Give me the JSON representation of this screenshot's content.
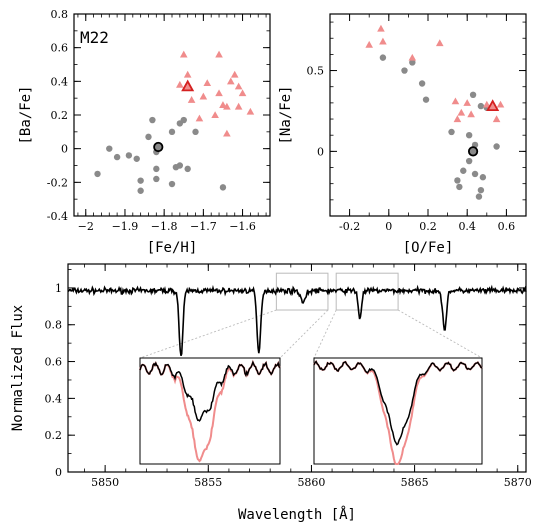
{
  "colors": {
    "pink": "#f08c8c",
    "red_edge": "#d42020",
    "gray": "#8a8a8a",
    "black": "#000000",
    "zoom_box": "#bbbbbb"
  },
  "chart_data": [
    {
      "type": "scatter",
      "label": "M22",
      "xlabel": "[Fe/H]",
      "ylabel": "[Ba/Fe]",
      "xlim": [
        -2.03,
        -1.53
      ],
      "ylim": [
        -0.4,
        0.8
      ],
      "xticks": [
        -2,
        -1.9,
        -1.8,
        -1.7,
        -1.6
      ],
      "yticks": [
        -0.4,
        -0.2,
        0,
        0.2,
        0.4,
        0.6,
        0.8
      ],
      "ytick_labels": [
        "-0.4",
        "-0.2",
        "0",
        "0.2",
        "0.4",
        "0.6",
        "0.8"
      ],
      "series": [
        {
          "marker": "circle",
          "color": "#8a8a8a",
          "points": [
            [
              -1.97,
              -0.15
            ],
            [
              -1.94,
              0.0
            ],
            [
              -1.92,
              -0.05
            ],
            [
              -1.89,
              -0.04
            ],
            [
              -1.87,
              -0.06
            ],
            [
              -1.86,
              -0.19
            ],
            [
              -1.86,
              -0.25
            ],
            [
              -1.84,
              0.07
            ],
            [
              -1.83,
              0.17
            ],
            [
              -1.82,
              -0.02
            ],
            [
              -1.82,
              -0.12
            ],
            [
              -1.82,
              -0.18
            ],
            [
              -1.78,
              0.1
            ],
            [
              -1.78,
              -0.21
            ],
            [
              -1.77,
              -0.11
            ],
            [
              -1.76,
              0.15
            ],
            [
              -1.76,
              -0.1
            ],
            [
              -1.75,
              0.17
            ],
            [
              -1.74,
              -0.12
            ],
            [
              -1.72,
              0.1
            ],
            [
              -1.65,
              -0.23
            ]
          ]
        },
        {
          "marker": "triangle",
          "color": "#f08c8c",
          "points": [
            [
              -1.76,
              0.38
            ],
            [
              -1.75,
              0.56
            ],
            [
              -1.74,
              0.44
            ],
            [
              -1.73,
              0.29
            ],
            [
              -1.71,
              0.18
            ],
            [
              -1.7,
              0.31
            ],
            [
              -1.69,
              0.39
            ],
            [
              -1.67,
              0.2
            ],
            [
              -1.66,
              0.56
            ],
            [
              -1.66,
              0.33
            ],
            [
              -1.65,
              0.26
            ],
            [
              -1.64,
              0.25
            ],
            [
              -1.64,
              0.09
            ],
            [
              -1.63,
              0.4
            ],
            [
              -1.62,
              0.44
            ],
            [
              -1.61,
              0.37
            ],
            [
              -1.61,
              0.25
            ],
            [
              -1.6,
              0.33
            ],
            [
              -1.58,
              0.22
            ]
          ]
        },
        {
          "marker": "circle-highlight",
          "color": "#8a8a8a",
          "points": [
            [
              -1.815,
              0.01
            ]
          ]
        },
        {
          "marker": "triangle-highlight",
          "color": "#f08c8c",
          "points": [
            [
              -1.74,
              0.37
            ]
          ]
        }
      ]
    },
    {
      "type": "scatter",
      "xlabel": "[O/Fe]",
      "ylabel": "[Na/Fe]",
      "xlim": [
        -0.3,
        0.7
      ],
      "ylim": [
        -0.4,
        0.85
      ],
      "xticks": [
        -0.2,
        0,
        0.2,
        0.4,
        0.6
      ],
      "xtick_labels": [
        "-0.2",
        "0",
        "0.2",
        "0.4",
        "0.6"
      ],
      "yticks": [
        0,
        0.5
      ],
      "ytick_labels": [
        "0",
        "0.5"
      ],
      "series": [
        {
          "marker": "circle",
          "color": "#8a8a8a",
          "points": [
            [
              -0.03,
              0.58
            ],
            [
              0.08,
              0.5
            ],
            [
              0.12,
              0.55
            ],
            [
              0.17,
              0.42
            ],
            [
              0.19,
              0.32
            ],
            [
              0.32,
              0.12
            ],
            [
              0.35,
              -0.18
            ],
            [
              0.36,
              -0.22
            ],
            [
              0.38,
              -0.12
            ],
            [
              0.41,
              0.1
            ],
            [
              0.41,
              -0.06
            ],
            [
              0.43,
              0.35
            ],
            [
              0.44,
              0.04
            ],
            [
              0.44,
              -0.14
            ],
            [
              0.46,
              -0.28
            ],
            [
              0.47,
              -0.24
            ],
            [
              0.47,
              0.28
            ],
            [
              0.48,
              -0.16
            ],
            [
              0.5,
              0.27
            ],
            [
              0.55,
              0.03
            ]
          ]
        },
        {
          "marker": "triangle",
          "color": "#f08c8c",
          "points": [
            [
              -0.1,
              0.66
            ],
            [
              -0.04,
              0.76
            ],
            [
              -0.03,
              0.68
            ],
            [
              0.12,
              0.58
            ],
            [
              0.26,
              0.67
            ],
            [
              0.34,
              0.31
            ],
            [
              0.35,
              0.2
            ],
            [
              0.37,
              0.24
            ],
            [
              0.4,
              0.3
            ],
            [
              0.42,
              0.23
            ],
            [
              0.5,
              0.29
            ],
            [
              0.55,
              0.2
            ],
            [
              0.57,
              0.29
            ]
          ]
        },
        {
          "marker": "circle-highlight",
          "color": "#8a8a8a",
          "points": [
            [
              0.43,
              0.0
            ]
          ]
        },
        {
          "marker": "triangle-highlight",
          "color": "#f08c8c",
          "points": [
            [
              0.53,
              0.28
            ]
          ]
        }
      ]
    },
    {
      "type": "line",
      "xlabel": "Wavelength [Å]",
      "ylabel": "Normalized Flux",
      "xlim": [
        5848.2,
        5870.4
      ],
      "ylim": [
        0,
        1.13
      ],
      "xticks": [
        5850,
        5855,
        5860,
        5865,
        5870
      ],
      "yticks": [
        0,
        0.2,
        0.4,
        0.6,
        0.8,
        1
      ],
      "ytick_labels": [
        "0",
        "0.2",
        "0.4",
        "0.6",
        "0.8",
        "1"
      ],
      "continuum": 0.985,
      "absorption_lines": [
        {
          "center": 5853.68,
          "depth": 0.36,
          "width": 0.09
        },
        {
          "center": 5857.45,
          "depth": 0.34,
          "width": 0.09
        },
        {
          "center": 5859.6,
          "depth": 0.06,
          "width": 0.12
        },
        {
          "center": 5862.35,
          "depth": 0.15,
          "width": 0.08
        },
        {
          "center": 5866.45,
          "depth": 0.22,
          "width": 0.09
        }
      ],
      "zoom_regions": [
        [
          5858.3,
          5860.8
        ],
        [
          5861.2,
          5864.2
        ]
      ]
    }
  ],
  "insets": [
    {
      "xlim": [
        5854.3,
        5855.9
      ],
      "ylim": [
        0.3,
        1.08
      ],
      "black": {
        "continuum": 1.0,
        "depth": 0.36,
        "center": 5855.0,
        "width": 0.13
      },
      "red": {
        "continuum": 1.0,
        "depth": 0.66,
        "center": 5855.0,
        "width": 0.13
      }
    },
    {
      "xlim": [
        5862.3,
        5863.5
      ],
      "ylim": [
        0.05,
        1.08
      ],
      "black": {
        "continuum": 1.0,
        "depth": 0.72,
        "center": 5862.9,
        "width": 0.08
      },
      "red": {
        "continuum": 1.0,
        "depth": 0.94,
        "center": 5862.9,
        "width": 0.08
      }
    }
  ]
}
